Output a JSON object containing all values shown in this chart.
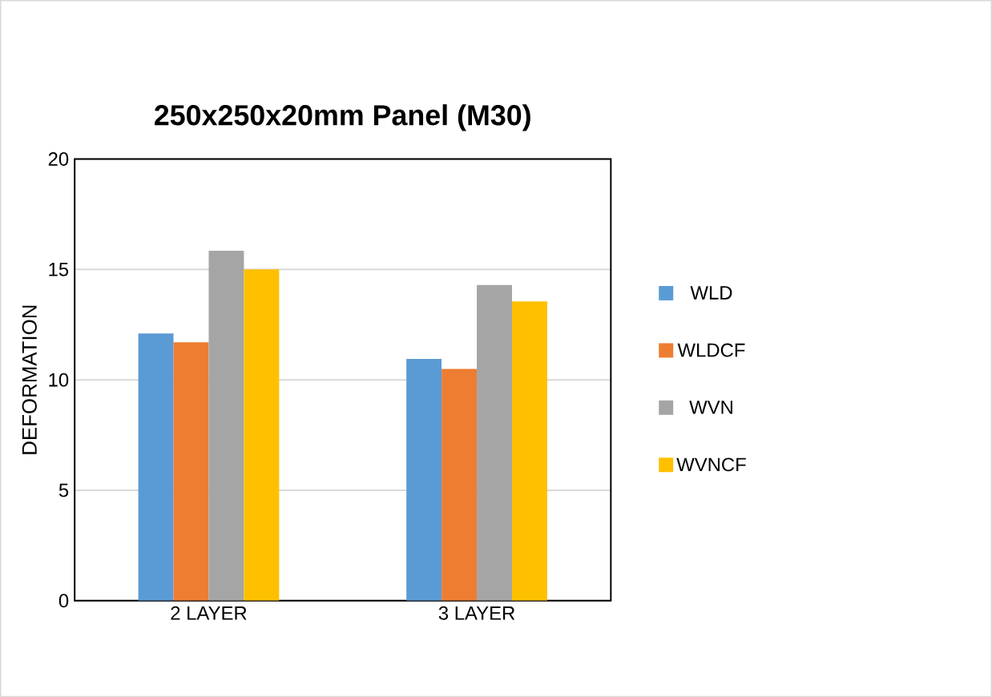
{
  "chart_data": {
    "type": "bar",
    "title": "250x250x20mm Panel (M30)",
    "ylabel": "DEFORMATION",
    "categories": [
      "2 LAYER",
      "3 LAYER"
    ],
    "series": [
      {
        "name": "WLD",
        "color": "#5b9bd5",
        "values": [
          12.1,
          10.95
        ]
      },
      {
        "name": "WLDCF",
        "color": "#ed7d31",
        "values": [
          11.7,
          10.5
        ]
      },
      {
        "name": "WVN",
        "color": "#a5a5a5",
        "values": [
          15.85,
          14.3
        ]
      },
      {
        "name": "WVNCF",
        "color": "#ffc000",
        "values": [
          15.0,
          13.55
        ]
      }
    ],
    "ylim": [
      0,
      20
    ],
    "yticks": [
      0,
      5,
      10,
      15,
      20
    ],
    "grid": "y",
    "legend": "right"
  }
}
